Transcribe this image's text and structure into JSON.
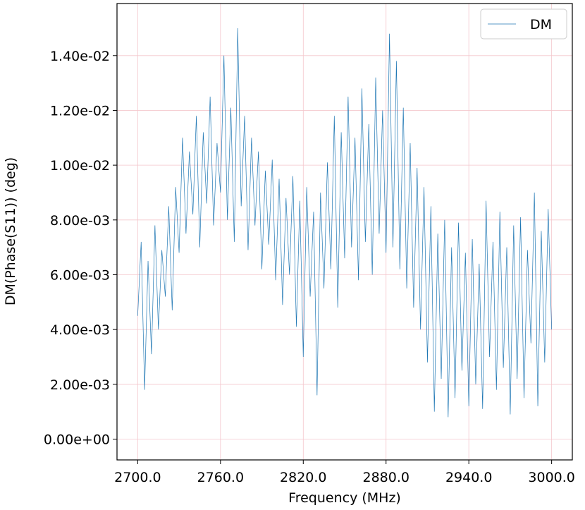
{
  "chart_data": {
    "type": "line",
    "x_label": "Frequency (MHz)",
    "y_label": "DM(Phase(S11)) (deg)",
    "x": [
      2700,
      2702.5,
      2705,
      2707.5,
      2710,
      2712.5,
      2715,
      2717.5,
      2720,
      2722.5,
      2725,
      2727.5,
      2730,
      2732.5,
      2735,
      2737.5,
      2740,
      2742.5,
      2745,
      2747.5,
      2750,
      2752.5,
      2755,
      2757.5,
      2760,
      2762.5,
      2765,
      2767.5,
      2770,
      2772.5,
      2775,
      2777.5,
      2780,
      2782.5,
      2785,
      2787.5,
      2790,
      2792.5,
      2795,
      2797.5,
      2800,
      2802.5,
      2805,
      2807.5,
      2810,
      2812.5,
      2815,
      2817.5,
      2820,
      2822.5,
      2825,
      2827.5,
      2830,
      2832.5,
      2835,
      2837.5,
      2840,
      2842.5,
      2845,
      2847.5,
      2850,
      2852.5,
      2855,
      2857.5,
      2860,
      2862.5,
      2865,
      2867.5,
      2870,
      2872.5,
      2875,
      2877.5,
      2880,
      2882.5,
      2885,
      2887.5,
      2890,
      2892.5,
      2895,
      2897.5,
      2900,
      2902.5,
      2905,
      2907.5,
      2910,
      2912.5,
      2915,
      2917.5,
      2920,
      2922.5,
      2925,
      2927.5,
      2930,
      2932.5,
      2935,
      2937.5,
      2940,
      2942.5,
      2945,
      2947.5,
      2950,
      2952.5,
      2955,
      2957.5,
      2960,
      2962.5,
      2965,
      2967.5,
      2970,
      2972.5,
      2975,
      2977.5,
      2980,
      2982.5,
      2985,
      2987.5,
      2990,
      2992.5,
      2995,
      2997.5,
      3000
    ],
    "series": [
      {
        "name": "DM",
        "color": "#1f77b4",
        "values": [
          0.0045,
          0.0072,
          0.0018,
          0.0065,
          0.0031,
          0.0078,
          0.004,
          0.0069,
          0.0052,
          0.0085,
          0.0047,
          0.0092,
          0.0068,
          0.011,
          0.0075,
          0.0105,
          0.0082,
          0.0118,
          0.007,
          0.0112,
          0.0086,
          0.0125,
          0.0078,
          0.0108,
          0.009,
          0.014,
          0.008,
          0.0121,
          0.0072,
          0.015,
          0.0085,
          0.0118,
          0.0069,
          0.011,
          0.0078,
          0.0105,
          0.0062,
          0.0098,
          0.0071,
          0.0102,
          0.0058,
          0.0095,
          0.0049,
          0.0088,
          0.006,
          0.0096,
          0.0041,
          0.0087,
          0.003,
          0.0092,
          0.0052,
          0.0083,
          0.0016,
          0.009,
          0.0055,
          0.0101,
          0.0062,
          0.0118,
          0.0048,
          0.0112,
          0.0066,
          0.0125,
          0.007,
          0.011,
          0.0058,
          0.0128,
          0.0072,
          0.0115,
          0.006,
          0.0132,
          0.0075,
          0.012,
          0.0068,
          0.0148,
          0.007,
          0.0138,
          0.0062,
          0.0121,
          0.0055,
          0.0108,
          0.0048,
          0.0099,
          0.004,
          0.0092,
          0.0028,
          0.0085,
          0.001,
          0.0075,
          0.0022,
          0.008,
          0.0008,
          0.007,
          0.0015,
          0.0079,
          0.0025,
          0.0068,
          0.0012,
          0.0073,
          0.002,
          0.0064,
          0.0011,
          0.0087,
          0.003,
          0.0072,
          0.0018,
          0.0083,
          0.0026,
          0.007,
          0.0009,
          0.0078,
          0.0022,
          0.0081,
          0.0015,
          0.0069,
          0.0035,
          0.009,
          0.0012,
          0.0076,
          0.0028,
          0.0084,
          0.004
        ]
      }
    ],
    "xlim": [
      2685,
      3015
    ],
    "ylim": [
      -0.00076,
      0.0159
    ],
    "xticks": [
      {
        "value": 2700,
        "label": "2700.0"
      },
      {
        "value": 2760,
        "label": "2760.0"
      },
      {
        "value": 2820,
        "label": "2820.0"
      },
      {
        "value": 2880,
        "label": "2880.0"
      },
      {
        "value": 2940,
        "label": "2940.0"
      },
      {
        "value": 3000,
        "label": "3000.0"
      }
    ],
    "yticks": [
      {
        "value": 0,
        "label": "0.00e+00"
      },
      {
        "value": 0.002,
        "label": "2.00e-03"
      },
      {
        "value": 0.004,
        "label": "4.00e-03"
      },
      {
        "value": 0.006,
        "label": "6.00e-03"
      },
      {
        "value": 0.008,
        "label": "8.00e-03"
      },
      {
        "value": 0.01,
        "label": "1.00e-02"
      },
      {
        "value": 0.012,
        "label": "1.20e-02"
      },
      {
        "value": 0.014,
        "label": "1.40e-02"
      }
    ],
    "grid": true,
    "legend": "upper right"
  }
}
